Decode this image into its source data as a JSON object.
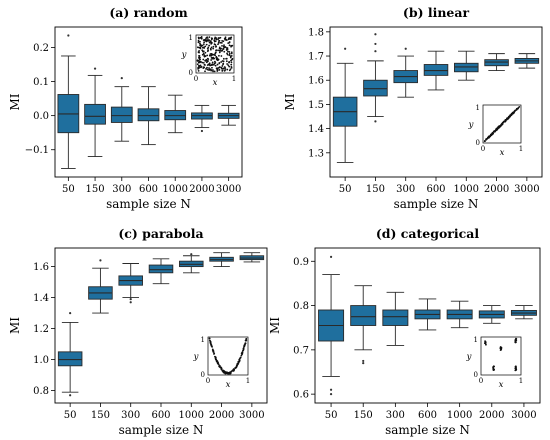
{
  "colors": {
    "box_fill": "#1f6f9e",
    "box_edge": "#2a2a2a",
    "outlier": "#333333",
    "inset_points": "#111111"
  },
  "chart_data": [
    {
      "type": "box",
      "title": "(a) random",
      "xlabel": "sample size N",
      "ylabel": "MI",
      "categories": [
        "50",
        "150",
        "300",
        "600",
        "1000",
        "2000",
        "3000"
      ],
      "ylim": [
        -0.18,
        0.26
      ],
      "yticks": [
        -0.1,
        0.0,
        0.1,
        0.2
      ],
      "ytick_labels": [
        "−0.1",
        "0.0",
        "0.1",
        "0.2"
      ],
      "boxes": [
        {
          "whisker_low": -0.155,
          "q1": -0.05,
          "median": 0.005,
          "q3": 0.062,
          "whisker_high": 0.175,
          "outliers": [
            0.235
          ]
        },
        {
          "whisker_low": -0.12,
          "q1": -0.025,
          "median": -0.002,
          "q3": 0.033,
          "whisker_high": 0.118,
          "outliers": [
            0.138
          ]
        },
        {
          "whisker_low": -0.075,
          "q1": -0.02,
          "median": 0.0,
          "q3": 0.025,
          "whisker_high": 0.085,
          "outliers": [
            0.11
          ]
        },
        {
          "whisker_low": -0.085,
          "q1": -0.015,
          "median": 0.0,
          "q3": 0.02,
          "whisker_high": 0.085,
          "outliers": []
        },
        {
          "whisker_low": -0.05,
          "q1": -0.012,
          "median": 0.0,
          "q3": 0.015,
          "whisker_high": 0.06,
          "outliers": []
        },
        {
          "whisker_low": -0.035,
          "q1": -0.01,
          "median": 0.0,
          "q3": 0.008,
          "whisker_high": 0.03,
          "outliers": [
            -0.045
          ]
        },
        {
          "whisker_low": -0.028,
          "q1": -0.008,
          "median": 0.0,
          "q3": 0.007,
          "whisker_high": 0.03,
          "outliers": []
        }
      ],
      "inset": {
        "kind": "random",
        "xlabel": "x",
        "ylabel": "y",
        "xticks": [
          "0",
          "1"
        ],
        "yticks": [
          "0",
          "1"
        ],
        "placement": "top-right"
      }
    },
    {
      "type": "box",
      "title": "(b) linear",
      "xlabel": "sample size N",
      "ylabel": "MI",
      "categories": [
        "50",
        "150",
        "300",
        "600",
        "1000",
        "2000",
        "3000"
      ],
      "ylim": [
        1.2,
        1.82
      ],
      "yticks": [
        1.3,
        1.4,
        1.5,
        1.6,
        1.7,
        1.8
      ],
      "ytick_labels": [
        "1.3",
        "1.4",
        "1.5",
        "1.6",
        "1.7",
        "1.8"
      ],
      "boxes": [
        {
          "whisker_low": 1.26,
          "q1": 1.41,
          "median": 1.47,
          "q3": 1.53,
          "whisker_high": 1.67,
          "outliers": [
            1.73
          ]
        },
        {
          "whisker_low": 1.45,
          "q1": 1.535,
          "median": 1.565,
          "q3": 1.6,
          "whisker_high": 1.68,
          "outliers": [
            1.43,
            1.72,
            1.75,
            1.79
          ]
        },
        {
          "whisker_low": 1.53,
          "q1": 1.59,
          "median": 1.615,
          "q3": 1.64,
          "whisker_high": 1.7,
          "outliers": [
            1.73
          ]
        },
        {
          "whisker_low": 1.56,
          "q1": 1.62,
          "median": 1.64,
          "q3": 1.665,
          "whisker_high": 1.72,
          "outliers": []
        },
        {
          "whisker_low": 1.6,
          "q1": 1.635,
          "median": 1.655,
          "q3": 1.67,
          "whisker_high": 1.72,
          "outliers": []
        },
        {
          "whisker_low": 1.64,
          "q1": 1.66,
          "median": 1.675,
          "q3": 1.685,
          "whisker_high": 1.71,
          "outliers": []
        },
        {
          "whisker_low": 1.65,
          "q1": 1.67,
          "median": 1.68,
          "q3": 1.69,
          "whisker_high": 1.71,
          "outliers": []
        }
      ],
      "inset": {
        "kind": "linear",
        "xlabel": "x",
        "ylabel": "y",
        "xticks": [
          "0",
          "1"
        ],
        "yticks": [
          "0",
          "1"
        ],
        "placement": "bottom-right"
      }
    },
    {
      "type": "box",
      "title": "(c) parabola",
      "xlabel": "sample size N",
      "ylabel": "MI",
      "categories": [
        "50",
        "150",
        "300",
        "600",
        "1000",
        "2000",
        "3000"
      ],
      "ylim": [
        0.72,
        1.72
      ],
      "yticks": [
        0.8,
        1.0,
        1.2,
        1.4,
        1.6
      ],
      "ytick_labels": [
        "0.8",
        "1.0",
        "1.2",
        "1.4",
        "1.6"
      ],
      "boxes": [
        {
          "whisker_low": 0.79,
          "q1": 0.96,
          "median": 1.0,
          "q3": 1.05,
          "whisker_high": 1.24,
          "outliers": [
            0.77,
            1.3
          ]
        },
        {
          "whisker_low": 1.3,
          "q1": 1.39,
          "median": 1.43,
          "q3": 1.47,
          "whisker_high": 1.59,
          "outliers": [
            1.64
          ]
        },
        {
          "whisker_low": 1.4,
          "q1": 1.48,
          "median": 1.51,
          "q3": 1.54,
          "whisker_high": 1.62,
          "outliers": [
            1.37,
            1.39
          ]
        },
        {
          "whisker_low": 1.49,
          "q1": 1.56,
          "median": 1.58,
          "q3": 1.61,
          "whisker_high": 1.65,
          "outliers": []
        },
        {
          "whisker_low": 1.56,
          "q1": 1.6,
          "median": 1.615,
          "q3": 1.635,
          "whisker_high": 1.67,
          "outliers": [
            1.68
          ]
        },
        {
          "whisker_low": 1.6,
          "q1": 1.635,
          "median": 1.645,
          "q3": 1.66,
          "whisker_high": 1.69,
          "outliers": []
        },
        {
          "whisker_low": 1.63,
          "q1": 1.645,
          "median": 1.655,
          "q3": 1.67,
          "whisker_high": 1.69,
          "outliers": []
        }
      ],
      "inset": {
        "kind": "parabola",
        "xlabel": "x",
        "ylabel": "y",
        "xticks": [
          "0",
          "1"
        ],
        "yticks": [
          "0",
          "1"
        ],
        "placement": "bottom-right"
      }
    },
    {
      "type": "box",
      "title": "(d) categorical",
      "xlabel": "sample size N",
      "ylabel": "MI",
      "categories": [
        "50",
        "150",
        "300",
        "600",
        "1000",
        "2000",
        "3000"
      ],
      "ylim": [
        0.58,
        0.93
      ],
      "yticks": [
        0.6,
        0.7,
        0.8,
        0.9
      ],
      "ytick_labels": [
        "0.6",
        "0.7",
        "0.8",
        "0.9"
      ],
      "boxes": [
        {
          "whisker_low": 0.64,
          "q1": 0.72,
          "median": 0.755,
          "q3": 0.79,
          "whisker_high": 0.87,
          "outliers": [
            0.61,
            0.6,
            0.91
          ]
        },
        {
          "whisker_low": 0.7,
          "q1": 0.755,
          "median": 0.775,
          "q3": 0.8,
          "whisker_high": 0.845,
          "outliers": [
            0.675,
            0.67
          ]
        },
        {
          "whisker_low": 0.71,
          "q1": 0.755,
          "median": 0.775,
          "q3": 0.79,
          "whisker_high": 0.83,
          "outliers": []
        },
        {
          "whisker_low": 0.745,
          "q1": 0.77,
          "median": 0.78,
          "q3": 0.79,
          "whisker_high": 0.815,
          "outliers": []
        },
        {
          "whisker_low": 0.75,
          "q1": 0.77,
          "median": 0.78,
          "q3": 0.79,
          "whisker_high": 0.81,
          "outliers": []
        },
        {
          "whisker_low": 0.76,
          "q1": 0.772,
          "median": 0.78,
          "q3": 0.788,
          "whisker_high": 0.8,
          "outliers": []
        },
        {
          "whisker_low": 0.77,
          "q1": 0.778,
          "median": 0.783,
          "q3": 0.789,
          "whisker_high": 0.8,
          "outliers": []
        }
      ],
      "inset": {
        "kind": "categorical",
        "xlabel": "x",
        "ylabel": "y",
        "xticks": [
          "0",
          "1"
        ],
        "yticks": [
          "0",
          "1"
        ],
        "placement": "bottom-right"
      }
    }
  ]
}
